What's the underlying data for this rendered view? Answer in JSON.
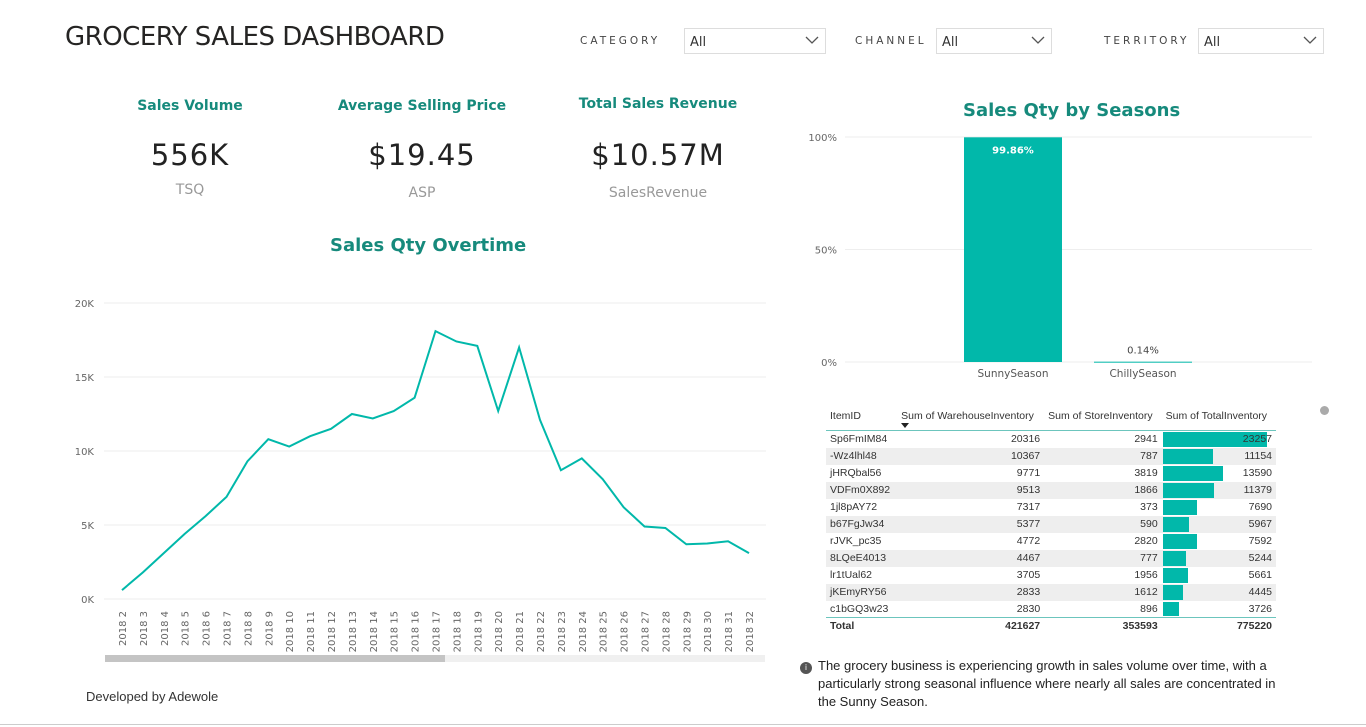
{
  "title": "GROCERY SALES DASHBOARD",
  "filters": [
    {
      "label": "CATEGORY",
      "value": "All"
    },
    {
      "label": "CHANNEL",
      "value": "All"
    },
    {
      "label": "TERRITORY",
      "value": "All"
    }
  ],
  "kpis": [
    {
      "title": "Sales Volume",
      "value": "556K",
      "sub": "TSQ"
    },
    {
      "title": "Average Selling Price",
      "value": "$19.45",
      "sub": "ASP"
    },
    {
      "title": "Total Sales Revenue",
      "value": "$10.57M",
      "sub": "SalesRevenue"
    }
  ],
  "accent": "#01b8aa",
  "chart_data": [
    {
      "type": "line",
      "title": "Sales Qty Overtime",
      "x": [
        "2018 2",
        "2018 3",
        "2018 4",
        "2018 5",
        "2018 6",
        "2018 7",
        "2018 8",
        "2018 9",
        "2018 10",
        "2018 11",
        "2018 12",
        "2018 13",
        "2018 14",
        "2018 15",
        "2018 16",
        "2018 17",
        "2018 18",
        "2018 19",
        "2018 20",
        "2018 21",
        "2018 22",
        "2018 23",
        "2018 24",
        "2018 25",
        "2018 26",
        "2018 27",
        "2018 28",
        "2018 29",
        "2018 30",
        "2018 31",
        "2018 32"
      ],
      "values": [
        600,
        1800,
        3100,
        4400,
        5600,
        6900,
        9300,
        10800,
        10300,
        11000,
        11500,
        12500,
        12200,
        12700,
        13600,
        18100,
        17400,
        17100,
        12700,
        17000,
        12100,
        8700,
        9500,
        8100,
        6200,
        4900,
        4800,
        3700,
        3750,
        3900,
        3100
      ],
      "ylim": [
        0,
        20000
      ],
      "yticks": [
        "0K",
        "5K",
        "10K",
        "15K",
        "20K"
      ],
      "grid": true
    },
    {
      "type": "bar",
      "title": "Sales Qty by Seasons",
      "categories": [
        "SunnySeason",
        "ChillySeason"
      ],
      "values": [
        99.86,
        0.14
      ],
      "labels": [
        "99.86%",
        "0.14%"
      ],
      "ylim": [
        0,
        100
      ],
      "yticks": [
        "0%",
        "50%",
        "100%"
      ],
      "grid": true
    }
  ],
  "table": {
    "headers": [
      "ItemID",
      "Sum of WarehouseInventory",
      "Sum of StoreInventory",
      "Sum of TotalInventory"
    ],
    "rows": [
      [
        "Sp6FmIM84",
        "20316",
        "2941",
        "23257"
      ],
      [
        "-Wz4lhl48",
        "10367",
        "787",
        "11154"
      ],
      [
        "jHRQbal56",
        "9771",
        "3819",
        "13590"
      ],
      [
        "VDFm0X892",
        "9513",
        "1866",
        "11379"
      ],
      [
        "1jl8pAY72",
        "7317",
        "373",
        "7690"
      ],
      [
        "b67FgJw34",
        "5377",
        "590",
        "5967"
      ],
      [
        "rJVK_pc35",
        "4772",
        "2820",
        "7592"
      ],
      [
        "8LQeE4013",
        "4467",
        "777",
        "5244"
      ],
      [
        "lr1tUal62",
        "3705",
        "1956",
        "5661"
      ],
      [
        "jKEmyRY56",
        "2833",
        "1612",
        "4445"
      ],
      [
        "c1bGQ3w23",
        "2830",
        "896",
        "3726"
      ]
    ],
    "total": [
      "Total",
      "421627",
      "353593",
      "775220"
    ]
  },
  "insight": "The grocery business is experiencing growth in sales volume over time, with a particularly strong seasonal influence where nearly all sales are concentrated in the Sunny Season.",
  "footer": "Developed by Adewole"
}
